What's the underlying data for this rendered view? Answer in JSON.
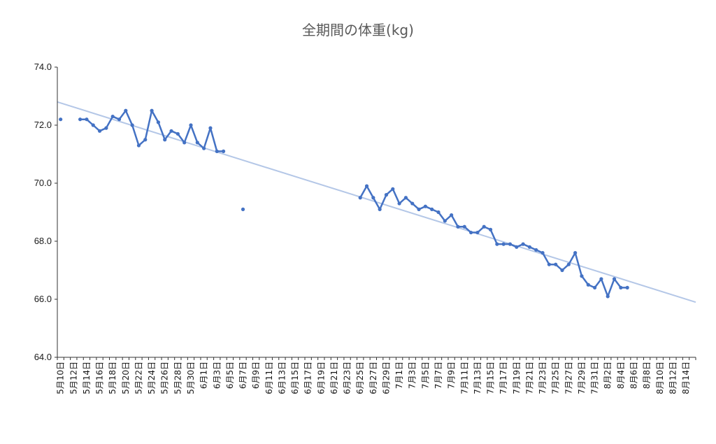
{
  "chart_data": {
    "type": "line",
    "title": "全期間の体重(kg)",
    "xlabel": "",
    "ylabel": "",
    "ylim": [
      64.0,
      74.0
    ],
    "yticks": [
      "64.0",
      "66.0",
      "68.0",
      "70.0",
      "72.0",
      "74.0"
    ],
    "x_start": "2020-05-10",
    "x_end": "2020-08-15",
    "x_tick_labels": [
      "5月10日",
      "5月12日",
      "5月14日",
      "5月16日",
      "5月18日",
      "5月20日",
      "5月22日",
      "5月24日",
      "5月26日",
      "5月28日",
      "5月30日",
      "6月1日",
      "6月3日",
      "6月5日",
      "6月7日",
      "6月9日",
      "6月11日",
      "6月13日",
      "6月15日",
      "6月17日",
      "6月19日",
      "6月21日",
      "6月23日",
      "6月25日",
      "6月27日",
      "6月29日",
      "7月1日",
      "7月3日",
      "7月5日",
      "7月7日",
      "7月9日",
      "7月11日",
      "7月13日",
      "7月15日",
      "7月17日",
      "7月19日",
      "7月21日",
      "7月23日",
      "7月25日",
      "7月27日",
      "7月29日",
      "7月31日",
      "8月2日",
      "8月4日",
      "8月6日",
      "8月8日",
      "8月10日",
      "8月12日",
      "8月14日"
    ],
    "series": [
      {
        "name": "体重",
        "color": "#4472c4",
        "points": [
          [
            "5月10日",
            72.2
          ],
          [
            "5月13日",
            72.2
          ],
          [
            "5月14日",
            72.2
          ],
          [
            "5月15日",
            72.0
          ],
          [
            "5月16日",
            71.8
          ],
          [
            "5月17日",
            71.9
          ],
          [
            "5月18日",
            72.3
          ],
          [
            "5月19日",
            72.2
          ],
          [
            "5月20日",
            72.5
          ],
          [
            "5月21日",
            72.0
          ],
          [
            "5月22日",
            71.3
          ],
          [
            "5月23日",
            71.5
          ],
          [
            "5月24日",
            72.5
          ],
          [
            "5月25日",
            72.1
          ],
          [
            "5月26日",
            71.5
          ],
          [
            "5月27日",
            71.8
          ],
          [
            "5月28日",
            71.7
          ],
          [
            "5月29日",
            71.4
          ],
          [
            "5月30日",
            72.0
          ],
          [
            "5月31日",
            71.4
          ],
          [
            "6月1日",
            71.2
          ],
          [
            "6月2日",
            71.9
          ],
          [
            "6月3日",
            71.1
          ],
          [
            "6月4日",
            71.1
          ],
          [
            "6月7日",
            69.1
          ],
          [
            "6月25日",
            69.5
          ],
          [
            "6月26日",
            69.9
          ],
          [
            "6月27日",
            69.5
          ],
          [
            "6月28日",
            69.1
          ],
          [
            "6月29日",
            69.6
          ],
          [
            "6月30日",
            69.8
          ],
          [
            "7月1日",
            69.3
          ],
          [
            "7月2日",
            69.5
          ],
          [
            "7月3日",
            69.3
          ],
          [
            "7月4日",
            69.1
          ],
          [
            "7月5日",
            69.2
          ],
          [
            "7月6日",
            69.1
          ],
          [
            "7月7日",
            69.0
          ],
          [
            "7月8日",
            68.7
          ],
          [
            "7月9日",
            68.9
          ],
          [
            "7月10日",
            68.5
          ],
          [
            "7月11日",
            68.5
          ],
          [
            "7月12日",
            68.3
          ],
          [
            "7月13日",
            68.3
          ],
          [
            "7月14日",
            68.5
          ],
          [
            "7月15日",
            68.4
          ],
          [
            "7月16日",
            67.9
          ],
          [
            "7月17日",
            67.9
          ],
          [
            "7月18日",
            67.9
          ],
          [
            "7月19日",
            67.8
          ],
          [
            "7月20日",
            67.9
          ],
          [
            "7月21日",
            67.8
          ],
          [
            "7月22日",
            67.7
          ],
          [
            "7月23日",
            67.6
          ],
          [
            "7月24日",
            67.2
          ],
          [
            "7月25日",
            67.2
          ],
          [
            "7月26日",
            67.0
          ],
          [
            "7月27日",
            67.2
          ],
          [
            "7月28日",
            67.6
          ],
          [
            "7月29日",
            66.8
          ],
          [
            "7月30日",
            66.5
          ],
          [
            "7月31日",
            66.4
          ],
          [
            "8月1日",
            66.7
          ],
          [
            "8月2日",
            66.1
          ],
          [
            "8月3日",
            66.7
          ],
          [
            "8月4日",
            66.4
          ],
          [
            "8月5日",
            66.4
          ]
        ]
      }
    ],
    "trendline": {
      "color": "#b4c7e7",
      "from": [
        "2020-05-10",
        72.8
      ],
      "to": [
        "2020-08-15",
        65.9
      ]
    },
    "grid": false,
    "legend": "none"
  }
}
